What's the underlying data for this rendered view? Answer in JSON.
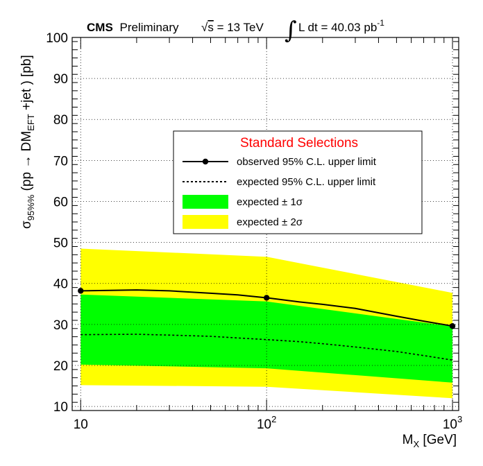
{
  "header": {
    "experiment": "CMS",
    "status": "Preliminary",
    "energy_prefix": "√",
    "energy_var": "s",
    "energy_value": " = 13 TeV",
    "lumi_integral": "∫",
    "lumi_text": "L dt = 40.03 pb",
    "lumi_exp": "-1"
  },
  "chart_data": {
    "type": "line",
    "xscale": "log",
    "xlim": [
      9,
      1080
    ],
    "ylim": [
      9,
      100
    ],
    "xlabel": {
      "main": "M",
      "sub": "X",
      "unit": " [GeV]"
    },
    "ylabel": {
      "sigma": "σ",
      "sigma_sub": "95%%",
      "p1": " (pp → DM",
      "p1_sub": "EFT",
      "p2": " +jet ) [pb]"
    },
    "grid": true,
    "yticks": [
      10,
      20,
      30,
      40,
      50,
      60,
      70,
      80,
      90,
      100
    ],
    "xticks": [
      {
        "value": 10,
        "base": "10",
        "exp": ""
      },
      {
        "value": 100,
        "base": "10",
        "exp": "2"
      },
      {
        "value": 1000,
        "base": "10",
        "exp": "3"
      }
    ],
    "band_2sigma": {
      "x": [
        10,
        100,
        1000
      ],
      "low": [
        15.2,
        14.8,
        12.0
      ],
      "high": [
        48.5,
        46.5,
        37.7
      ]
    },
    "band_1sigma": {
      "x": [
        10,
        100,
        1000
      ],
      "low": [
        20.2,
        19.3,
        15.8
      ],
      "high": [
        37.3,
        35.6,
        29.5
      ]
    },
    "observed": {
      "x": [
        10,
        20,
        30,
        50,
        70,
        100,
        150,
        200,
        300,
        500,
        700,
        1000
      ],
      "y": [
        38.2,
        38.4,
        38.2,
        37.6,
        37.2,
        36.5,
        35.5,
        34.9,
        33.9,
        32.0,
        30.8,
        29.6
      ],
      "marker_x": [
        10,
        100,
        1000
      ]
    },
    "expected": {
      "x": [
        10,
        20,
        30,
        50,
        70,
        100,
        150,
        200,
        300,
        500,
        700,
        1000
      ],
      "y": [
        27.5,
        27.6,
        27.4,
        27.1,
        26.7,
        26.3,
        25.8,
        25.3,
        24.5,
        23.4,
        22.4,
        21.3
      ]
    },
    "legend": {
      "title": "Standard Selections",
      "placement": "center-right",
      "entries": [
        {
          "label": "observed 95% C.L. upper limit",
          "kind": "line-marker"
        },
        {
          "label": "expected 95% C.L. upper limit",
          "kind": "dashed"
        },
        {
          "label": "expected ± 1σ",
          "kind": "fill-green"
        },
        {
          "label": "expected ± 2σ",
          "kind": "fill-yellow"
        }
      ]
    },
    "colors": {
      "band_2sigma": "#ffff00",
      "band_1sigma": "#00ff00",
      "observed": "#000000",
      "expected": "#000000",
      "grid": "#000000",
      "legend_title": "#ff0000"
    }
  }
}
